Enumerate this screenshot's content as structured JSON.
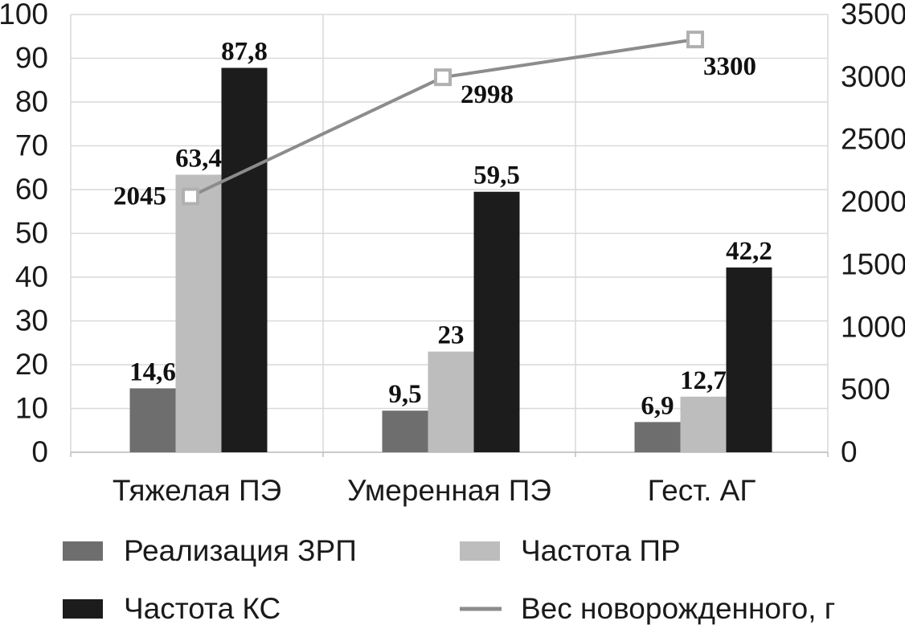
{
  "chart_data": {
    "type": "bar",
    "categories": [
      "Тяжелая ПЭ",
      "Умеренная ПЭ",
      "Гест. АГ"
    ],
    "series": [
      {
        "name": "Реализация ЗРП",
        "type": "bar",
        "axis": "left",
        "values": [
          14.6,
          9.5,
          6.9
        ],
        "labels": [
          "14,6",
          "9,5",
          "6,9"
        ],
        "color": "#6e6e6e"
      },
      {
        "name": "Частота ПР",
        "type": "bar",
        "axis": "left",
        "values": [
          63.4,
          23,
          12.7
        ],
        "labels": [
          "63,4",
          "23",
          "12,7"
        ],
        "color": "#bdbdbd"
      },
      {
        "name": "Частота КС",
        "type": "bar",
        "axis": "left",
        "values": [
          87.8,
          59.5,
          42.2
        ],
        "labels": [
          "87,8",
          "59,5",
          "42,2"
        ],
        "color": "#1c1c1c"
      },
      {
        "name": "Вес новорожденного, г",
        "type": "line",
        "axis": "right",
        "values": [
          2045,
          2998,
          3300
        ],
        "labels": [
          "2045",
          "2998",
          "3300"
        ],
        "color": "#8c8c8c"
      }
    ],
    "y_left": {
      "lim": [
        0,
        100
      ],
      "ticks": [
        "0",
        "10",
        "20",
        "30",
        "40",
        "50",
        "60",
        "70",
        "80",
        "90",
        "100"
      ]
    },
    "y_right": {
      "lim": [
        0,
        3500
      ],
      "ticks": [
        "0",
        "500",
        "1000",
        "1500",
        "2000",
        "2500",
        "3000",
        "3500"
      ]
    },
    "grid": true,
    "legend_position": "bottom",
    "legend": [
      "Реализация ЗРП",
      "Частота ПР",
      "Частота КС",
      "Вес новорожденного, г"
    ]
  }
}
